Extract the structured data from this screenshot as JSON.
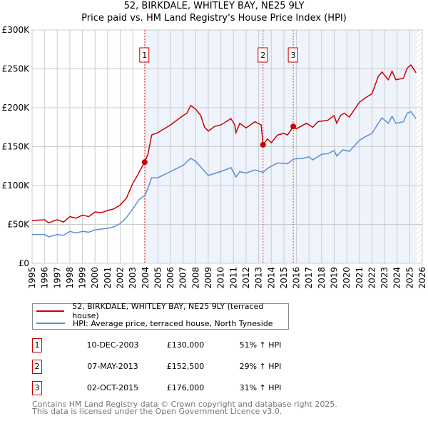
{
  "title": "52, BIRKDALE, WHITLEY BAY, NE25 9LY",
  "subtitle": "Price paid vs. HM Land Registry's House Price Index (HPI)",
  "legend": [
    "52, BIRKDALE, WHITLEY BAY, NE25 9LY (terraced house)",
    "HPI: Average price, terraced house, North Tyneside"
  ],
  "transactions": [
    {
      "n": "1",
      "date": "10-DEC-2003",
      "price": "£130,000",
      "hpi": "51% ↑ HPI"
    },
    {
      "n": "2",
      "date": "07-MAY-2013",
      "price": "£152,500",
      "hpi": "29% ↑ HPI"
    },
    {
      "n": "3",
      "date": "02-OCT-2015",
      "price": "£176,000",
      "hpi": "31% ↑ HPI"
    }
  ],
  "footer": [
    "Contains HM Land Registry data © Crown copyright and database right 2025.",
    "This data is licensed under the Open Government Licence v3.0."
  ],
  "chart_data": {
    "type": "line",
    "xlim": [
      1995,
      2026
    ],
    "ylim": [
      0,
      300000
    ],
    "yticks": [
      0,
      50000,
      100000,
      150000,
      200000,
      250000,
      300000
    ],
    "ytick_labels": [
      "£0",
      "£50K",
      "£100K",
      "£150K",
      "£200K",
      "£250K",
      "£300K"
    ],
    "xticks": [
      1995,
      1996,
      1997,
      1998,
      1999,
      2000,
      2001,
      2002,
      2003,
      2004,
      2005,
      2006,
      2007,
      2008,
      2009,
      2010,
      2011,
      2012,
      2013,
      2014,
      2015,
      2016,
      2017,
      2018,
      2019,
      2020,
      2021,
      2022,
      2023,
      2024,
      2025,
      2026
    ],
    "shaded_range": [
      2003.94,
      2025.55
    ],
    "hatched_from": 2025.55,
    "colors": {
      "property": "#cc0000",
      "hpi": "#5b8fd6",
      "shade": "#eef3fc"
    },
    "sales": [
      {
        "label": "1",
        "x": 2003.94,
        "y": 130000
      },
      {
        "label": "2",
        "x": 2013.35,
        "y": 152500
      },
      {
        "label": "3",
        "x": 2015.75,
        "y": 176000
      }
    ],
    "series": [
      {
        "name": "property",
        "points": [
          [
            1995,
            55000
          ],
          [
            1996,
            56000
          ],
          [
            1996.3,
            52000
          ],
          [
            1997,
            56000
          ],
          [
            1997.5,
            53000
          ],
          [
            1998,
            60000
          ],
          [
            1998.5,
            58000
          ],
          [
            1999,
            62000
          ],
          [
            1999.5,
            60000
          ],
          [
            2000,
            66000
          ],
          [
            2000.5,
            65000
          ],
          [
            2001,
            68000
          ],
          [
            2001.5,
            70000
          ],
          [
            2002,
            75000
          ],
          [
            2002.5,
            84000
          ],
          [
            2003,
            103000
          ],
          [
            2003.2,
            108000
          ],
          [
            2003.94,
            130000
          ],
          [
            2004.2,
            140000
          ],
          [
            2004.5,
            165000
          ],
          [
            2005,
            168000
          ],
          [
            2006,
            178000
          ],
          [
            2007,
            190000
          ],
          [
            2007.3,
            193000
          ],
          [
            2007.6,
            203000
          ],
          [
            2008,
            198000
          ],
          [
            2008.4,
            190000
          ],
          [
            2008.7,
            175000
          ],
          [
            2009,
            170000
          ],
          [
            2009.5,
            176000
          ],
          [
            2010,
            178000
          ],
          [
            2010.8,
            186000
          ],
          [
            2011.1,
            178000
          ],
          [
            2011.2,
            168000
          ],
          [
            2011.5,
            180000
          ],
          [
            2012,
            174000
          ],
          [
            2012.7,
            182000
          ],
          [
            2013.2,
            178000
          ],
          [
            2013.35,
            152500
          ],
          [
            2013.7,
            160000
          ],
          [
            2014,
            155000
          ],
          [
            2014.5,
            165000
          ],
          [
            2015,
            167000
          ],
          [
            2015.3,
            165000
          ],
          [
            2015.75,
            176000
          ],
          [
            2016,
            173000
          ],
          [
            2016.8,
            180000
          ],
          [
            2017.3,
            175000
          ],
          [
            2017.7,
            182000
          ],
          [
            2018.5,
            184000
          ],
          [
            2019,
            190000
          ],
          [
            2019.2,
            180000
          ],
          [
            2019.5,
            190000
          ],
          [
            2019.8,
            193000
          ],
          [
            2020.2,
            188000
          ],
          [
            2021,
            207000
          ],
          [
            2021.5,
            213000
          ],
          [
            2022,
            218000
          ],
          [
            2022.5,
            240000
          ],
          [
            2022.8,
            246000
          ],
          [
            2023.3,
            236000
          ],
          [
            2023.6,
            247000
          ],
          [
            2023.9,
            236000
          ],
          [
            2024.5,
            238000
          ],
          [
            2024.8,
            251000
          ],
          [
            2025.1,
            255000
          ],
          [
            2025.5,
            245000
          ]
        ]
      },
      {
        "name": "hpi",
        "points": [
          [
            1995,
            37000
          ],
          [
            1996,
            37000
          ],
          [
            1996.3,
            34000
          ],
          [
            1997,
            37000
          ],
          [
            1997.5,
            36000
          ],
          [
            1998,
            41000
          ],
          [
            1998.5,
            39000
          ],
          [
            1999,
            41000
          ],
          [
            1999.5,
            40000
          ],
          [
            2000,
            43000
          ],
          [
            2001,
            45000
          ],
          [
            2001.5,
            47000
          ],
          [
            2002,
            51000
          ],
          [
            2002.5,
            59000
          ],
          [
            2003,
            70000
          ],
          [
            2003.5,
            82000
          ],
          [
            2004,
            88000
          ],
          [
            2004.5,
            110000
          ],
          [
            2005,
            110000
          ],
          [
            2006,
            118000
          ],
          [
            2007,
            126000
          ],
          [
            2007.6,
            135000
          ],
          [
            2008,
            131000
          ],
          [
            2008.5,
            122000
          ],
          [
            2009,
            113000
          ],
          [
            2010,
            118000
          ],
          [
            2010.8,
            123000
          ],
          [
            2011.2,
            111000
          ],
          [
            2011.5,
            118000
          ],
          [
            2012,
            116000
          ],
          [
            2012.7,
            120000
          ],
          [
            2013.35,
            117000
          ],
          [
            2013.8,
            123000
          ],
          [
            2014.5,
            129000
          ],
          [
            2015.3,
            128000
          ],
          [
            2015.75,
            134000
          ],
          [
            2016.5,
            135000
          ],
          [
            2017,
            137000
          ],
          [
            2017.3,
            133000
          ],
          [
            2018,
            140000
          ],
          [
            2018.5,
            141000
          ],
          [
            2019,
            145000
          ],
          [
            2019.2,
            138000
          ],
          [
            2019.7,
            146000
          ],
          [
            2020.2,
            144000
          ],
          [
            2021,
            158000
          ],
          [
            2021.5,
            163000
          ],
          [
            2022,
            167000
          ],
          [
            2022.5,
            180000
          ],
          [
            2022.8,
            187000
          ],
          [
            2023.3,
            180000
          ],
          [
            2023.6,
            189000
          ],
          [
            2023.9,
            180000
          ],
          [
            2024.5,
            182000
          ],
          [
            2024.8,
            193000
          ],
          [
            2025.1,
            195000
          ],
          [
            2025.5,
            186000
          ]
        ]
      }
    ]
  }
}
